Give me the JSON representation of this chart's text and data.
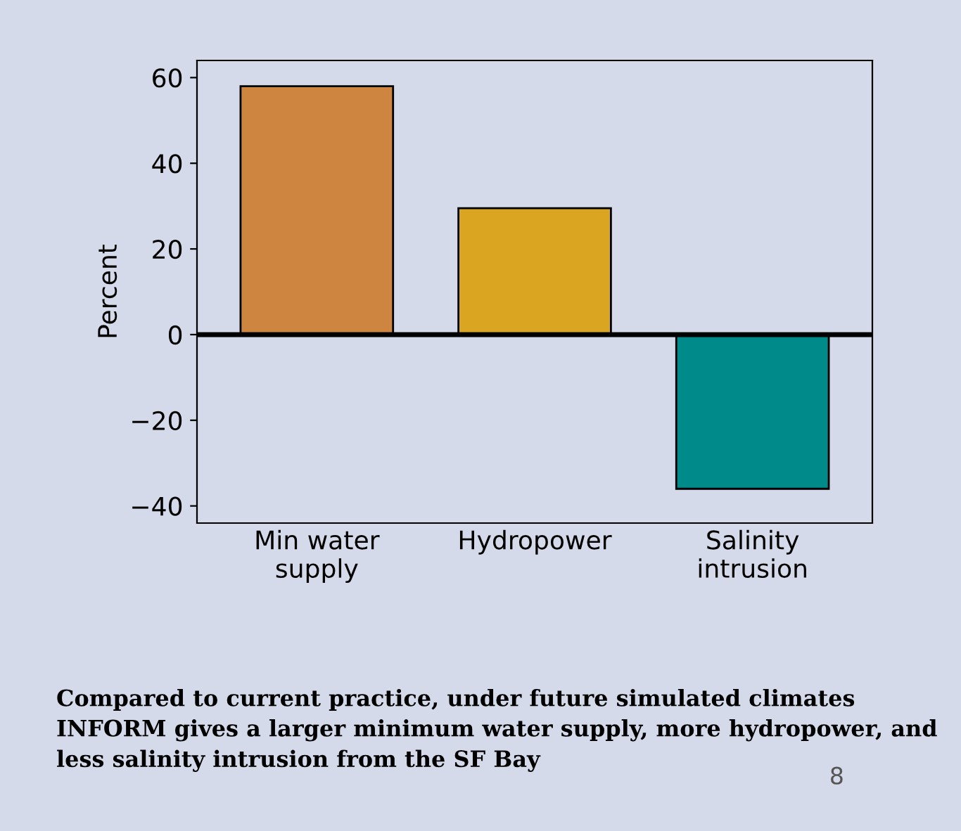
{
  "chart_data": {
    "type": "bar",
    "ylabel": "Percent",
    "categories": [
      "Min water\nsupply",
      "Hydropower",
      "Salinity\nintrusion"
    ],
    "values": [
      58,
      29.5,
      -36
    ],
    "colors": [
      "#cd853f",
      "#daa520",
      "#008b8b"
    ],
    "ylim": [
      -44,
      64
    ],
    "yticks": [
      {
        "value": -40,
        "label": "−40"
      },
      {
        "value": -20,
        "label": "−20"
      },
      0,
      20,
      40,
      60
    ],
    "ref_lines": [
      {
        "axis": "y",
        "value": 0,
        "label": null,
        "color": "#000000"
      }
    ],
    "grid": false,
    "legend": false,
    "annotations": [
      "Compared to current practice, under future simulated climates INFORM gives a larger minimum water supply, more hydropower, and less salinity intrusion from the SF Bay",
      "8"
    ]
  }
}
